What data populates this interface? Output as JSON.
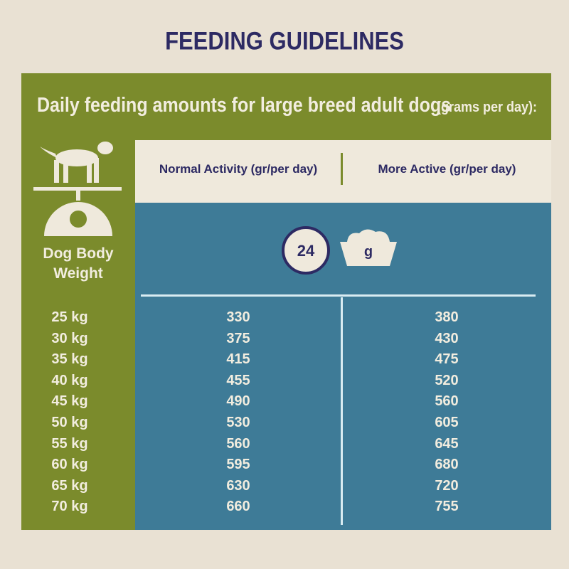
{
  "title": "FEEDING GUIDELINES",
  "subtitle": "Daily feeding amounts for large breed adult dogs",
  "unit_note": "(grams per day):",
  "weight_header": "Dog Body Weight",
  "columns": [
    "Normal Activity (gr/per day)",
    "More Active (gr/per day)"
  ],
  "icon": {
    "clock": "24",
    "bowl": "g"
  },
  "table": {
    "rows": [
      [
        "25 kg",
        330,
        380
      ],
      [
        "30 kg",
        375,
        430
      ],
      [
        "35 kg",
        415,
        475
      ],
      [
        "40 kg",
        455,
        520
      ],
      [
        "45 kg",
        490,
        560
      ],
      [
        "50 kg",
        530,
        605
      ],
      [
        "55 kg",
        560,
        645
      ],
      [
        "60 kg",
        595,
        680
      ],
      [
        "65 kg",
        630,
        720
      ],
      [
        "70 kg",
        660,
        755
      ]
    ]
  }
}
